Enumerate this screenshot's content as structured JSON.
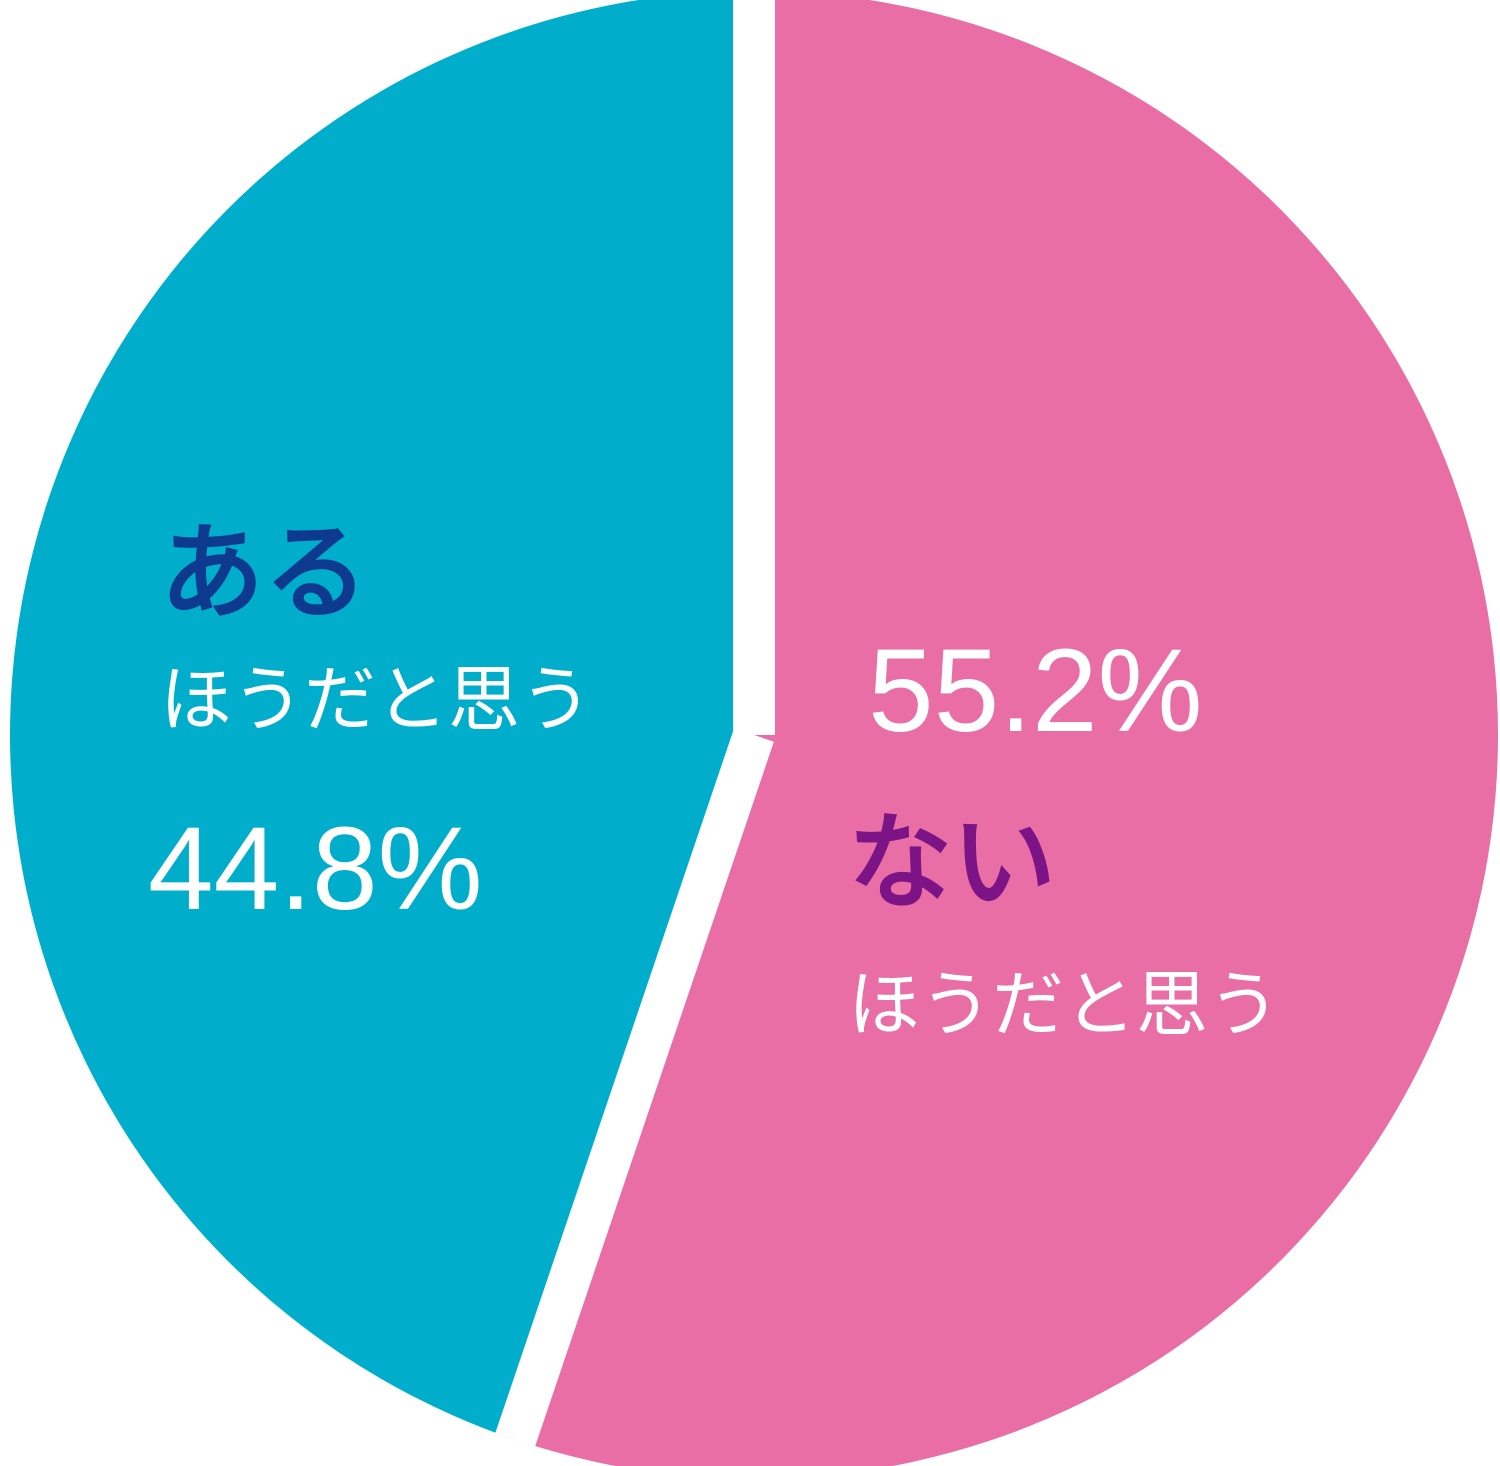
{
  "chart_data": {
    "type": "pie",
    "categories": [
      "ない",
      "ある"
    ],
    "category_sublabels": [
      "ほうだと思う",
      "ほうだと思う"
    ],
    "values": [
      55.2,
      44.8
    ],
    "value_labels": [
      "55.2%",
      "44.8%"
    ],
    "colors": [
      "#e96ea6",
      "#00aecb"
    ],
    "label_colors": [
      "#7d1486",
      "#0d3a8e"
    ]
  }
}
